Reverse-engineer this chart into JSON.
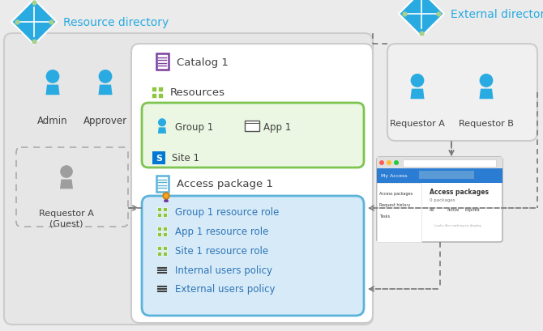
{
  "bg_color": "#ebebeb",
  "resource_dir_label": "Resource directory",
  "external_dir_label": "External directory",
  "catalog_label": "Catalog 1",
  "resources_label": "Resources",
  "group1_label": "Group 1",
  "app1_label": "App 1",
  "site1_label": "Site 1",
  "access_pkg_label": "Access package 1",
  "pkg_items": [
    "Group 1 resource role",
    "App 1 resource role",
    "Site 1 resource role",
    "Internal users policy",
    "External users policy"
  ],
  "admin_label": "Admin",
  "approver_label": "Approver",
  "requestor_a_guest_label": "Requestor A\n(Guest)",
  "requestor_a_label": "Requestor A",
  "requestor_b_label": "Requestor B",
  "blue_user": "#29ABE2",
  "gray_user": "#9E9E9E",
  "outer_box_fill": "#e6e6e6",
  "outer_box_edge": "#cccccc",
  "catalog_box_fill": "#f7f7f7",
  "catalog_box_edge": "#cccccc",
  "catalog_icon_color": "#7B3FA0",
  "resources_box_fill": "#EBF7E3",
  "resources_box_edge": "#7DC450",
  "resources_grid_color": "#8DC63F",
  "access_box_fill": "#D6EAF8",
  "access_box_edge": "#5BB3D9",
  "external_box_fill": "#f0f0f0",
  "external_box_edge": "#cccccc",
  "guest_box_edge": "#aaaaaa",
  "diamond_fill": "#29ABE2",
  "diamond_dot": "#A8D08D",
  "arrow_color": "#777777",
  "text_blue": "#29ABE2",
  "text_dark": "#404040",
  "text_item": "#2E75B6",
  "browser_chrome": "#e0e0e0",
  "browser_title_bar": "#2B7CD3",
  "browser_nav_fill": "#1A5FA8",
  "grid_green": "#8DC63F"
}
